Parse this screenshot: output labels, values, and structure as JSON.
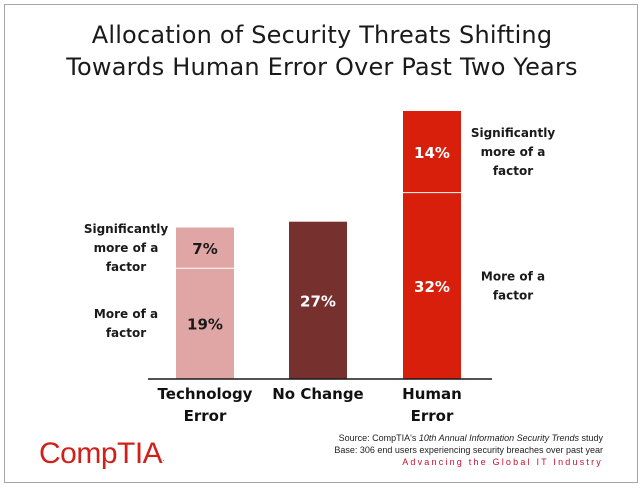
{
  "title_line1": "Allocation of Security Threats Shifting",
  "title_line2": "Towards Human Error Over Past Two Years",
  "source_prefix": "Source: CompTIA's ",
  "source_italic": "10th Annual Information Security Trends",
  "source_suffix": " study",
  "base_note": "Base: 306 end users experiencing security breaches over past year",
  "tagline": "Advancing the Global IT Industry",
  "logo_text": "CompTIA",
  "logo_mark": ".",
  "colors": {
    "tech_light": "#e0a6a6",
    "no_change": "#76312e",
    "human": "#d81f0c"
  },
  "chart_data": {
    "type": "bar",
    "stacked": true,
    "categories": [
      "Technology Error",
      "No Change",
      "Human Error"
    ],
    "category_label_lines": [
      [
        "Technology",
        "Error"
      ],
      [
        "No Change"
      ],
      [
        "Human",
        "Error"
      ]
    ],
    "series": [
      {
        "name": "More of a factor",
        "values": [
          19,
          27,
          32
        ]
      },
      {
        "name": "Significantly more of a factor",
        "values": [
          7,
          0,
          14
        ]
      }
    ],
    "data_labels": [
      [
        "19%",
        "27%",
        "32%"
      ],
      [
        "7%",
        null,
        "14%"
      ]
    ],
    "side_labels": [
      {
        "category": 0,
        "side": "left",
        "segment": 1,
        "lines": [
          "Significantly",
          "more of a",
          "factor"
        ]
      },
      {
        "category": 0,
        "side": "left",
        "segment": 0,
        "lines": [
          "More of a",
          "factor"
        ]
      },
      {
        "category": 2,
        "side": "right",
        "segment": 1,
        "lines": [
          "Significantly",
          "more of a",
          "factor"
        ]
      },
      {
        "category": 2,
        "side": "right",
        "segment": 0,
        "lines": [
          "More of a",
          "factor"
        ]
      }
    ],
    "ylim": [
      0,
      46
    ],
    "grid": false,
    "legend": "none"
  }
}
